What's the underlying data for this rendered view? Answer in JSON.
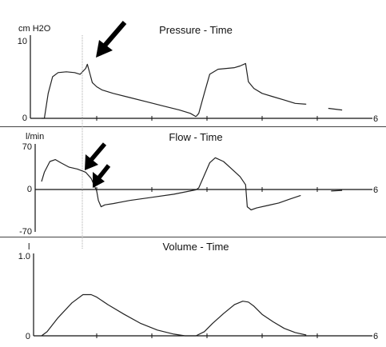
{
  "chart_data": [
    {
      "type": "line",
      "title": "Pressure - Time",
      "ylabel": "cm H2O",
      "ylim": [
        0,
        10
      ],
      "xlim": [
        0,
        6
      ],
      "yticks": [
        "10",
        "0"
      ],
      "xend_label": "6",
      "series": [
        {
          "x": [
            0,
            0.05,
            0.12,
            0.2,
            0.3,
            0.45,
            0.6,
            0.7,
            0.8,
            0.83,
            0.88,
            0.92,
            1.0,
            1.1,
            1.3,
            1.6,
            1.9,
            2.2,
            2.5,
            2.7,
            2.8
          ],
          "y": [
            0,
            0,
            3.0,
            5.0,
            5.5,
            5.6,
            5.5,
            5.3,
            6.0,
            6.5,
            5.3,
            4.3,
            3.8,
            3.4,
            3.0,
            2.5,
            2.0,
            1.5,
            1.0,
            0.6,
            0.2
          ]
        },
        {
          "x": [
            2.8,
            2.85,
            2.95,
            3.05,
            3.2,
            3.35,
            3.5,
            3.6,
            3.7,
            3.75,
            3.85,
            4.0,
            4.2,
            4.4,
            4.6,
            4.8
          ],
          "y": [
            0.2,
            0.6,
            3.0,
            5.3,
            5.9,
            6.0,
            6.1,
            6.3,
            6.6,
            4.4,
            3.6,
            3.0,
            2.6,
            2.2,
            1.8,
            1.7
          ]
        },
        {
          "x": [
            5.2,
            5.45
          ],
          "y": [
            1.2,
            1.0
          ]
        }
      ],
      "annotations": [
        "arrow"
      ],
      "marker_line_x": 0.75
    },
    {
      "type": "line",
      "title": "Flow - Time",
      "ylabel": "l/min",
      "ylim": [
        -70,
        70
      ],
      "xlim": [
        0,
        6
      ],
      "yticks": [
        "70",
        "0",
        "-70"
      ],
      "xend_label": "6",
      "series": [
        {
          "x": [
            0,
            0.05,
            0.15,
            0.25,
            0.35,
            0.5,
            0.65,
            0.8,
            0.9,
            0.95,
            1.0,
            1.03,
            1.08,
            1.15,
            1.3,
            1.6,
            2.0,
            2.4,
            2.8,
            2.85
          ],
          "y": [
            10,
            25,
            42,
            45,
            40,
            33,
            30,
            25,
            15,
            5,
            -5,
            -20,
            -30,
            -27,
            -25,
            -20,
            -15,
            -10,
            -3,
            0
          ]
        },
        {
          "x": [
            2.85,
            2.95,
            3.05,
            3.15,
            3.3,
            3.45,
            3.6,
            3.7,
            3.73,
            3.8,
            3.9,
            4.1,
            4.3,
            4.5,
            4.7
          ],
          "y": [
            0,
            20,
            40,
            48,
            42,
            30,
            18,
            5,
            -30,
            -35,
            -32,
            -28,
            -24,
            -18,
            -12
          ]
        },
        {
          "x": [
            5.25,
            5.45
          ],
          "y": [
            -5,
            -4
          ]
        }
      ],
      "annotations": [
        "arrow",
        "arrow"
      ],
      "marker_line_x": 0.75
    },
    {
      "type": "line",
      "title": "Volume - Time",
      "ylabel": "l",
      "ylim": [
        0,
        1.0
      ],
      "xlim": [
        0,
        6
      ],
      "yticks": [
        "1.0",
        "0"
      ],
      "xend_label": "6",
      "series": [
        {
          "x": [
            0,
            0.1,
            0.3,
            0.55,
            0.75,
            0.9,
            1.0,
            1.2,
            1.5,
            1.8,
            2.1,
            2.4,
            2.6,
            2.8
          ],
          "y": [
            0,
            0.05,
            0.22,
            0.4,
            0.5,
            0.5,
            0.47,
            0.38,
            0.26,
            0.15,
            0.07,
            0.02,
            0,
            0
          ]
        },
        {
          "x": [
            2.8,
            2.95,
            3.1,
            3.3,
            3.5,
            3.65,
            3.75,
            3.85,
            4.0,
            4.2,
            4.4,
            4.6,
            4.8
          ],
          "y": [
            0,
            0.05,
            0.15,
            0.27,
            0.38,
            0.42,
            0.41,
            0.36,
            0.26,
            0.17,
            0.09,
            0.04,
            0.01
          ]
        }
      ]
    }
  ]
}
